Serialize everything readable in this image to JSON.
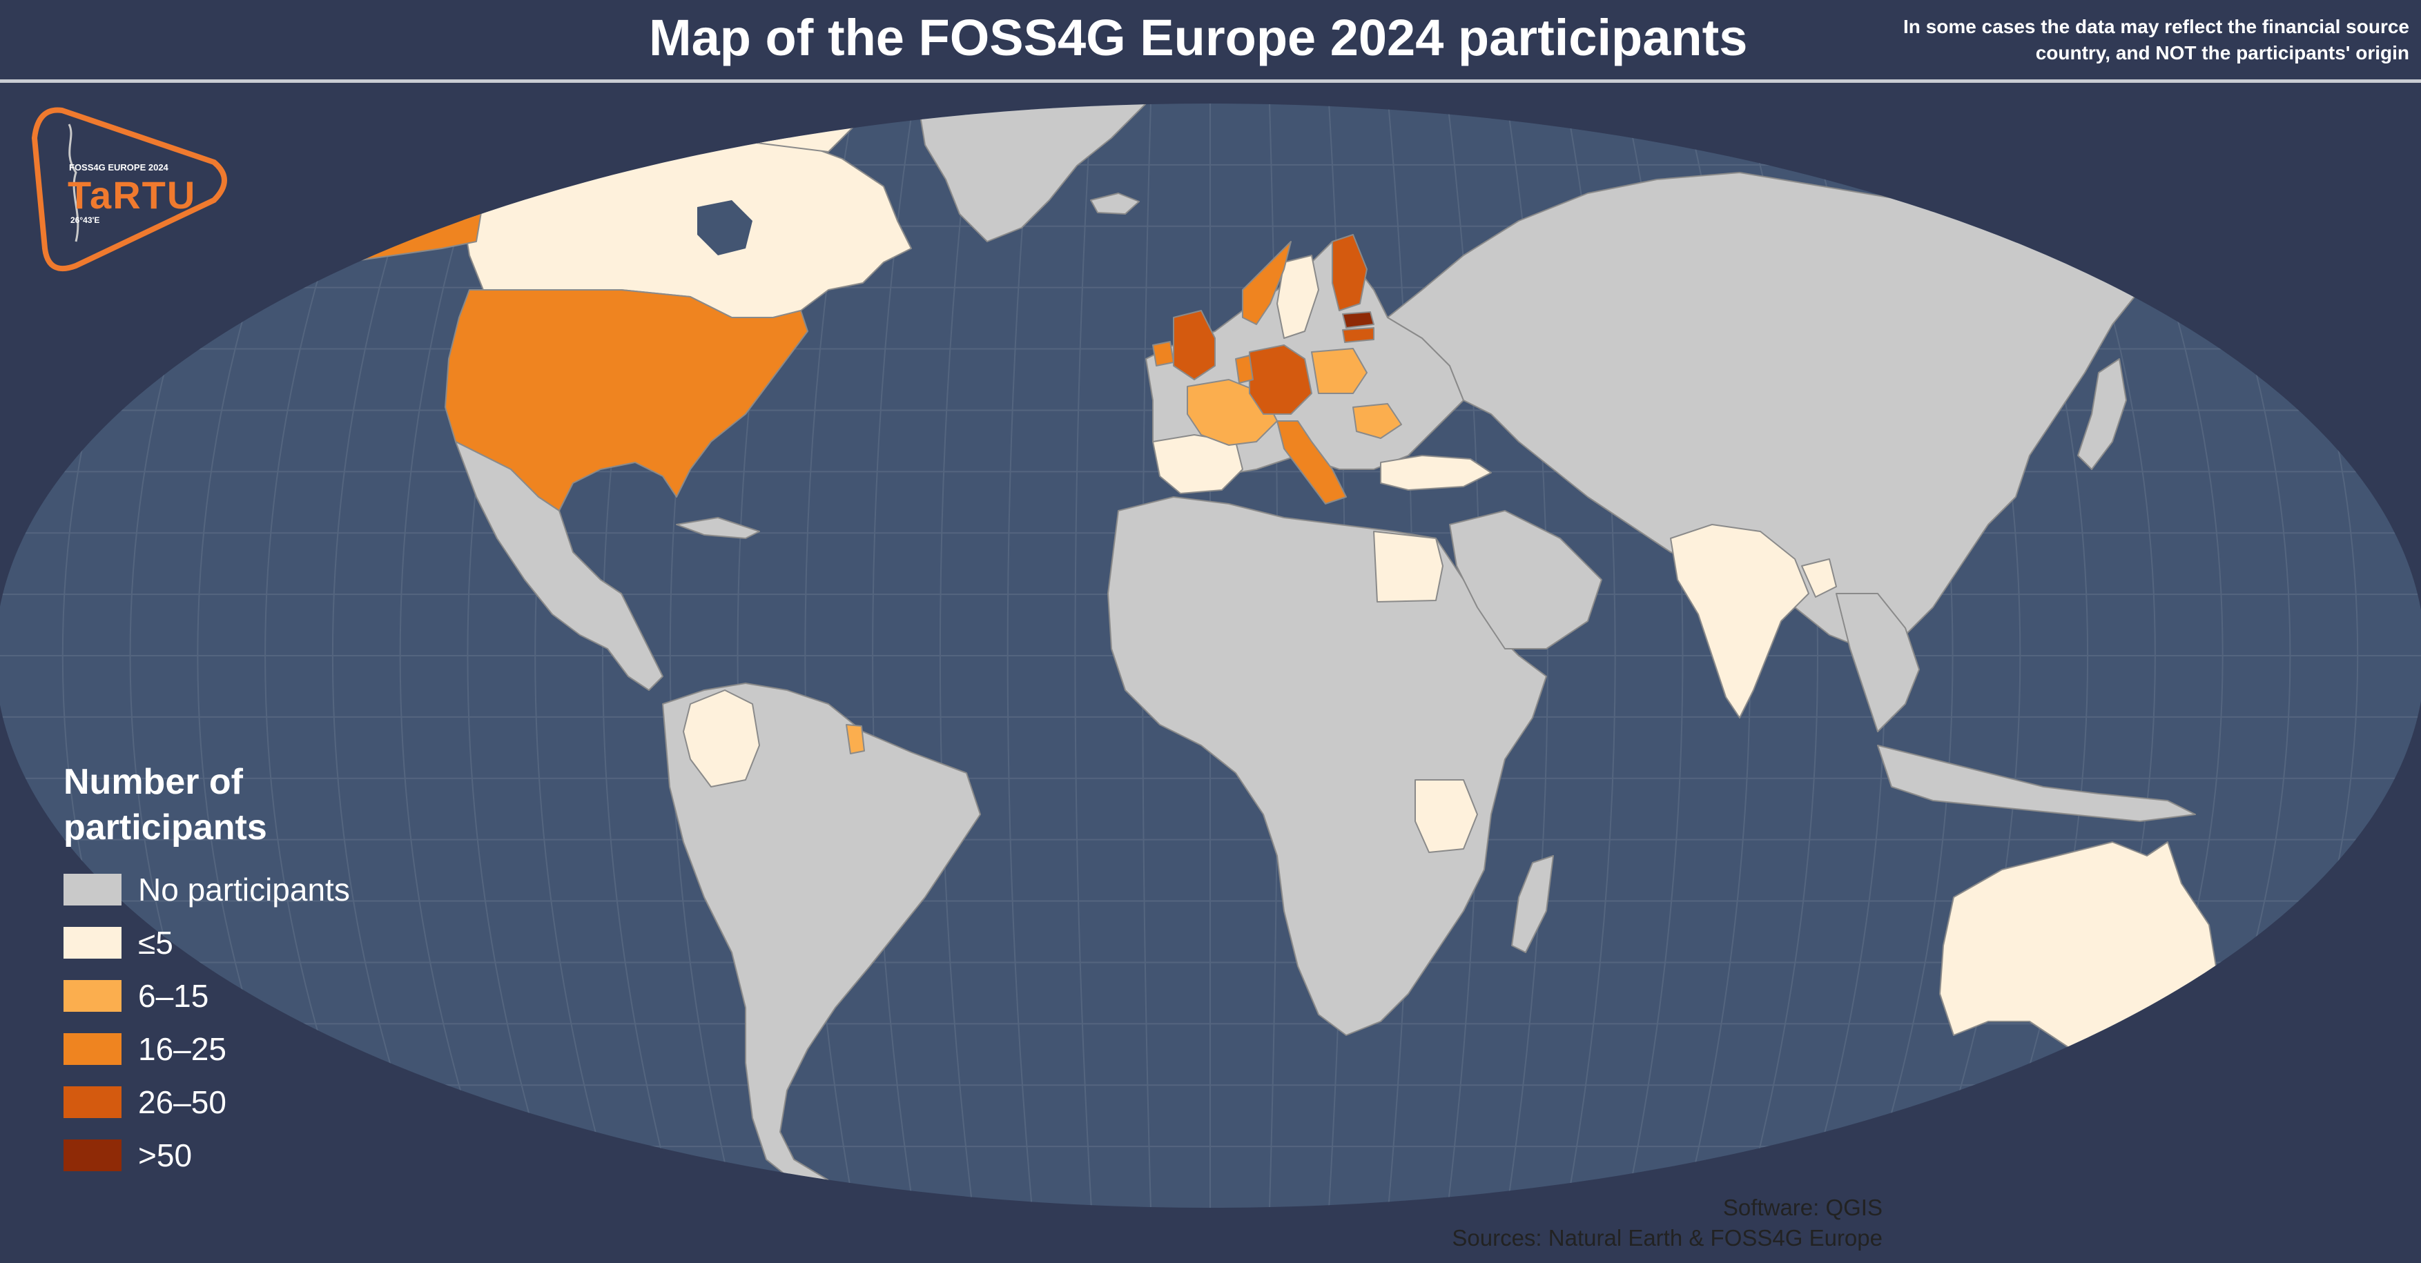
{
  "title": "Map of the FOSS4G Europe 2024 participants",
  "disclaimer": "In some cases the data may reflect the financial source country, and NOT the participants' origin",
  "logo": {
    "line1": "FOSS4G EUROPE 2024",
    "line2": "TaRTU",
    "line3": "26°43'E",
    "icon": "foss4g-europe-2024-tartu-logo"
  },
  "legend": {
    "title": "Number of participants",
    "items": [
      {
        "label": "No participants",
        "color": "#c9c9c9"
      },
      {
        "label": "≤5",
        "color": "#fef1dc"
      },
      {
        "label": "6–15",
        "color": "#fbae4e"
      },
      {
        "label": "16–25",
        "color": "#ef8420"
      },
      {
        "label": "26–50",
        "color": "#d45a0f"
      },
      {
        "label": ">50",
        "color": "#8f2a06"
      }
    ]
  },
  "credits": {
    "software": "Software: QGIS",
    "sources": "Sources: Natural Earth & FOSS4G Europe"
  },
  "colors": {
    "background": "#313a55",
    "ocean": "#435572",
    "graticule": "#5a6b86",
    "border": "#8a8a8a",
    "logo_accent": "#f07a2e"
  }
}
